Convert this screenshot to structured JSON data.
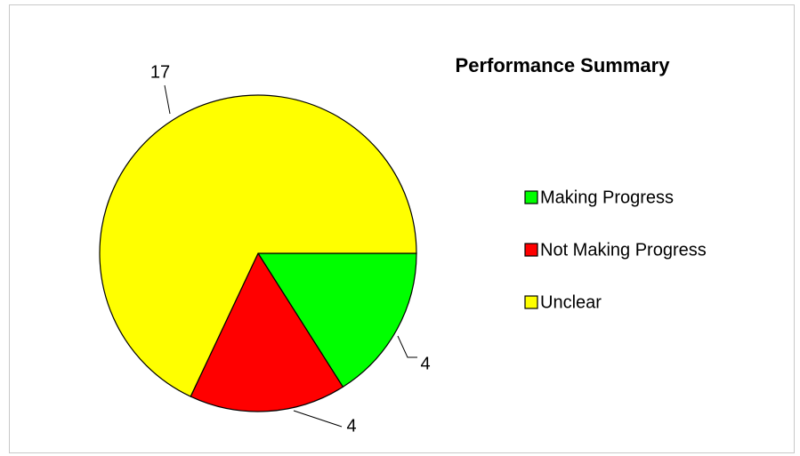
{
  "chart_data": {
    "type": "pie",
    "title": "Performance Summary",
    "categories": [
      "Making Progress",
      "Not Making Progress",
      "Unclear"
    ],
    "values": [
      4,
      4,
      17
    ],
    "colors": [
      "#00ff00",
      "#ff0000",
      "#ffff00"
    ],
    "legend": "right"
  }
}
